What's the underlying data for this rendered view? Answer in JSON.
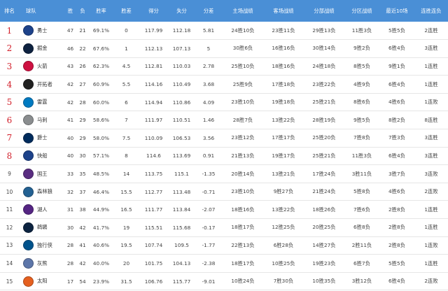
{
  "headers": {
    "rank": "排名",
    "team": "球队",
    "wins": "胜",
    "losses": "负",
    "pct": "胜率",
    "gb": "胜差",
    "pts": "得分",
    "opp": "失分",
    "diff": "分差",
    "home": "主场战绩",
    "away": "客场战绩",
    "division": "分部战绩",
    "conference": "分区战绩",
    "last10": "最近10场",
    "streak": "连胜连负"
  },
  "teams": [
    {
      "rank": "1",
      "name": "勇士",
      "logo": "warriors-logo",
      "color": "#1d428a",
      "w": "47",
      "l": "21",
      "pct": "69.1%",
      "gb": "0",
      "pts": "117.99",
      "opp": "112.18",
      "diff": "5.81",
      "home": "24胜10负",
      "away": "23胜11负",
      "div": "29胜13负",
      "conf": "11胜3负",
      "last10": "5胜5负",
      "streak": "2连胜"
    },
    {
      "rank": "2",
      "name": "掘金",
      "logo": "nuggets-logo",
      "color": "#0e2240",
      "w": "46",
      "l": "22",
      "pct": "67.6%",
      "gb": "1",
      "pts": "112.13",
      "opp": "107.13",
      "diff": "5",
      "home": "30胜6负",
      "away": "16胜16负",
      "div": "30胜14负",
      "conf": "9胜2负",
      "last10": "6胜4负",
      "streak": "3连胜"
    },
    {
      "rank": "3",
      "name": "火箭",
      "logo": "rockets-logo",
      "color": "#ce1141",
      "w": "43",
      "l": "26",
      "pct": "62.3%",
      "gb": "4.5",
      "pts": "112.81",
      "opp": "110.03",
      "diff": "2.78",
      "home": "25胜10负",
      "away": "18胜16负",
      "div": "24胜18负",
      "conf": "8胜5负",
      "last10": "9胜1负",
      "streak": "1连胜"
    },
    {
      "rank": "4",
      "name": "开拓者",
      "logo": "blazers-logo",
      "color": "#222222",
      "w": "42",
      "l": "27",
      "pct": "60.9%",
      "gb": "5.5",
      "pts": "114.16",
      "opp": "110.49",
      "diff": "3.68",
      "home": "25胜9负",
      "away": "17胜18负",
      "div": "23胜22负",
      "conf": "4胜9负",
      "last10": "6胜4负",
      "streak": "1连胜"
    },
    {
      "rank": "5",
      "name": "雷霆",
      "logo": "thunder-logo",
      "color": "#007ac1",
      "w": "42",
      "l": "28",
      "pct": "60.0%",
      "gb": "6",
      "pts": "114.94",
      "opp": "110.86",
      "diff": "4.09",
      "home": "23胜10负",
      "away": "19胜18负",
      "div": "25胜21负",
      "conf": "8胜6负",
      "last10": "4胜6负",
      "streak": "1连败"
    },
    {
      "rank": "6",
      "name": "马刺",
      "logo": "spurs-logo",
      "color": "#8a8d8f",
      "w": "41",
      "l": "29",
      "pct": "58.6%",
      "gb": "7",
      "pts": "111.97",
      "opp": "110.51",
      "diff": "1.46",
      "home": "28胜7负",
      "away": "13胜22负",
      "div": "28胜19负",
      "conf": "9胜5负",
      "last10": "8胜2负",
      "streak": "8连胜"
    },
    {
      "rank": "7",
      "name": "爵士",
      "logo": "jazz-logo",
      "color": "#002b5c",
      "w": "40",
      "l": "29",
      "pct": "58.0%",
      "gb": "7.5",
      "pts": "110.09",
      "opp": "106.53",
      "diff": "3.56",
      "home": "23胜12负",
      "away": "17胜17负",
      "div": "25胜20负",
      "conf": "7胜8负",
      "last10": "7胜3负",
      "streak": "3连胜"
    },
    {
      "rank": "8",
      "name": "快船",
      "logo": "clippers-logo",
      "color": "#1d428a",
      "w": "40",
      "l": "30",
      "pct": "57.1%",
      "gb": "8",
      "pts": "114.6",
      "opp": "113.69",
      "diff": "0.91",
      "home": "21胜13负",
      "away": "19胜17负",
      "div": "25胜21负",
      "conf": "11胜3负",
      "last10": "6胜4负",
      "streak": "3连胜"
    },
    {
      "rank": "9",
      "name": "国王",
      "logo": "kings-logo",
      "color": "#5a2d81",
      "w": "33",
      "l": "35",
      "pct": "48.5%",
      "gb": "14",
      "pts": "113.75",
      "opp": "115.1",
      "diff": "-1.35",
      "home": "20胜14负",
      "away": "13胜21负",
      "div": "17胜24负",
      "conf": "3胜11负",
      "last10": "3胜7负",
      "streak": "3连败"
    },
    {
      "rank": "10",
      "name": "森林狼",
      "logo": "timberwolves-logo",
      "color": "#236192",
      "w": "32",
      "l": "37",
      "pct": "46.4%",
      "gb": "15.5",
      "pts": "112.77",
      "opp": "113.48",
      "diff": "-0.71",
      "home": "23胜10负",
      "away": "9胜27负",
      "div": "21胜24负",
      "conf": "5胜8负",
      "last10": "4胜6负",
      "streak": "2连败"
    },
    {
      "rank": "11",
      "name": "湖人",
      "logo": "lakers-logo",
      "color": "#552583",
      "w": "31",
      "l": "38",
      "pct": "44.9%",
      "gb": "16.5",
      "pts": "111.77",
      "opp": "113.84",
      "diff": "-2.07",
      "home": "18胜16负",
      "away": "13胜22负",
      "div": "18胜26负",
      "conf": "7胜6负",
      "last10": "2胜8负",
      "streak": "1连胜"
    },
    {
      "rank": "12",
      "name": "鹈鹕",
      "logo": "pelicans-logo",
      "color": "#0c2340",
      "w": "30",
      "l": "42",
      "pct": "41.7%",
      "gb": "19",
      "pts": "115.51",
      "opp": "115.68",
      "diff": "-0.17",
      "home": "18胜17负",
      "away": "12胜25负",
      "div": "20胜25负",
      "conf": "6胜8负",
      "last10": "2胜8负",
      "streak": "1连胜"
    },
    {
      "rank": "13",
      "name": "独行侠",
      "logo": "mavericks-logo",
      "color": "#00538c",
      "w": "28",
      "l": "41",
      "pct": "40.6%",
      "gb": "19.5",
      "pts": "107.74",
      "opp": "109.5",
      "diff": "-1.77",
      "home": "22胜13负",
      "away": "6胜28负",
      "div": "14胜27负",
      "conf": "2胜11负",
      "last10": "2胜8负",
      "streak": "1连败"
    },
    {
      "rank": "14",
      "name": "灰熊",
      "logo": "grizzlies-logo",
      "color": "#5d76a9",
      "w": "28",
      "l": "42",
      "pct": "40.0%",
      "gb": "20",
      "pts": "101.75",
      "opp": "104.13",
      "diff": "-2.38",
      "home": "18胜17负",
      "away": "10胜25负",
      "div": "19胜23负",
      "conf": "6胜7负",
      "last10": "5胜5负",
      "streak": "1连胜"
    },
    {
      "rank": "15",
      "name": "太阳",
      "logo": "suns-logo",
      "color": "#e56020",
      "w": "17",
      "l": "54",
      "pct": "23.9%",
      "gb": "31.5",
      "pts": "106.76",
      "opp": "115.77",
      "diff": "-9.01",
      "home": "10胜24负",
      "away": "7胜30负",
      "div": "10胜35负",
      "conf": "3胜12负",
      "last10": "6胜4负",
      "streak": "2连败"
    }
  ]
}
